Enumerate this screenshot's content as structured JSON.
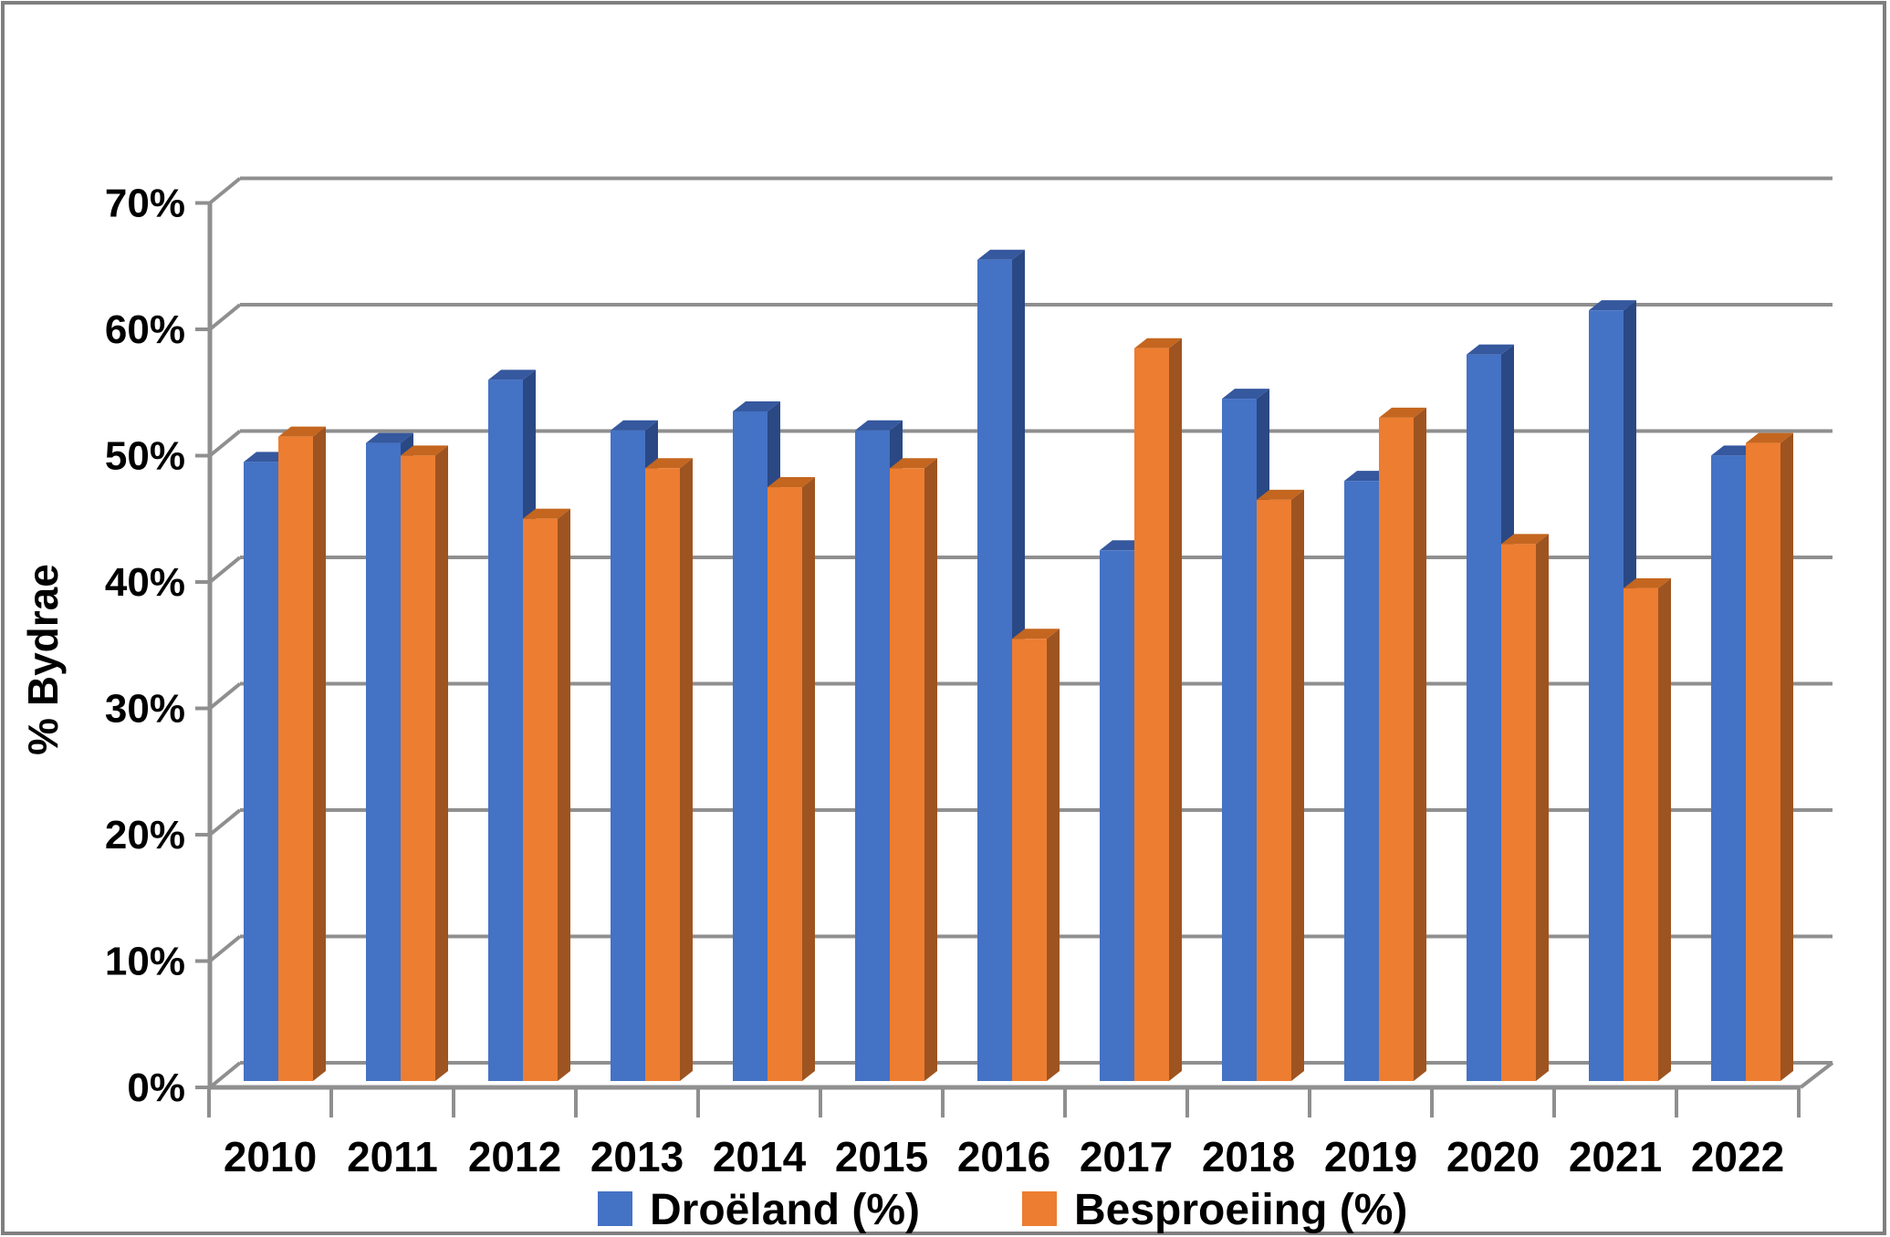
{
  "frame": {
    "border_color": "#7f7f7f",
    "background": "#ffffff"
  },
  "chart_data": {
    "type": "bar",
    "variant": "3d-clustered-column",
    "title": "",
    "xlabel": "",
    "ylabel": "% Bydrae",
    "categories": [
      "2010",
      "2011",
      "2012",
      "2013",
      "2014",
      "2015",
      "2016",
      "2017",
      "2018",
      "2019",
      "2020",
      "2021",
      "2022"
    ],
    "series": [
      {
        "name": "Droëland (%)",
        "values": [
          49,
          50.5,
          55.5,
          51.5,
          53,
          51.5,
          65,
          42,
          54,
          47.5,
          57.5,
          61,
          49.5
        ],
        "color_front": "#4472C4",
        "color_top": "#35589E",
        "color_side": "#2A4884"
      },
      {
        "name": "Besproeiing (%)",
        "values": [
          51,
          49.5,
          44.5,
          48.5,
          47,
          48.5,
          35,
          58,
          46,
          52.5,
          42.5,
          39,
          50.5
        ],
        "color_front": "#ED7D31",
        "color_top": "#C4661F",
        "color_side": "#9E5420"
      }
    ],
    "ylim": [
      0,
      70
    ],
    "ytick_step": 10,
    "ytick_labels": [
      "0%",
      "10%",
      "20%",
      "30%",
      "40%",
      "50%",
      "60%",
      "70%"
    ],
    "grid": true,
    "legend_position": "bottom",
    "gridline_color": "#8f8f8f",
    "axis_color": "#8f8f8f",
    "text_color": "#000000"
  }
}
